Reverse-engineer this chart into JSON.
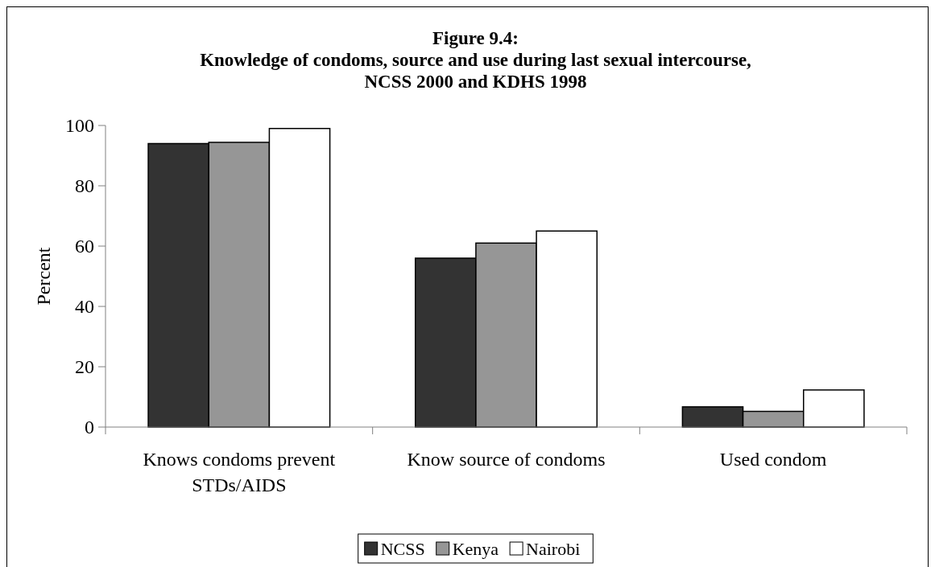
{
  "chart_data": {
    "type": "bar",
    "title": "Figure 9.4:\nKnowledge of condoms, source and use during last sexual intercourse,\nNCSS 2000 and KDHS 1998",
    "ylabel": "Percent",
    "categories": [
      "Knows condoms prevent STDs/AIDS",
      "Know source of condoms",
      "Used condom"
    ],
    "series": [
      {
        "name": "NCSS",
        "color": "#333333",
        "values": [
          94,
          56,
          6.7
        ]
      },
      {
        "name": "Kenya",
        "color": "#969696",
        "values": [
          94.4,
          61,
          5.2
        ]
      },
      {
        "name": "Nairobi",
        "color": "#ffffff",
        "values": [
          99,
          65,
          12.3
        ]
      }
    ],
    "ylim": [
      0,
      100
    ],
    "yticks": [
      0,
      20,
      40,
      60,
      80,
      100
    ],
    "grid": false,
    "legend": "bottom"
  }
}
